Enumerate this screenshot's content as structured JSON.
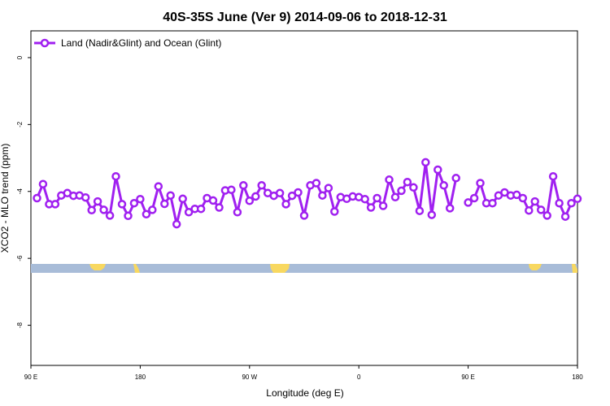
{
  "chart_data": {
    "type": "line",
    "title": "40S-35S June (Ver 9)   2014-09-06 to 2018-12-31",
    "xlabel": "Longitude (deg E)",
    "ylabel": "XCO2 - MLO trend (ppm)",
    "xlim": [
      90,
      540
    ],
    "ylim": [
      -9.2,
      0.8
    ],
    "x_ticks": [
      {
        "value": 90,
        "label": "90 E"
      },
      {
        "value": 180,
        "label": "180"
      },
      {
        "value": 270,
        "label": "90 W"
      },
      {
        "value": 360,
        "label": "0"
      },
      {
        "value": 450,
        "label": "90 E"
      },
      {
        "value": 540,
        "label": "180"
      }
    ],
    "y_ticks": [
      {
        "value": 0,
        "label": "0"
      },
      {
        "value": -2,
        "label": "-2"
      },
      {
        "value": -4,
        "label": "-4"
      },
      {
        "value": -6,
        "label": "-6"
      },
      {
        "value": -8,
        "label": "-8"
      }
    ],
    "legend": {
      "position": "top-left"
    },
    "series": [
      {
        "name": "Land (Nadir&Glint) and Ocean (Glint)",
        "color": "#a020f0",
        "points": [
          [
            95,
            -4.2
          ],
          [
            100,
            -3.78
          ],
          [
            105,
            -4.38
          ],
          [
            110,
            -4.38
          ],
          [
            115,
            -4.12
          ],
          [
            120,
            -4.05
          ],
          [
            125,
            -4.13
          ],
          [
            130,
            -4.12
          ],
          [
            135,
            -4.18
          ],
          [
            140,
            -4.56
          ],
          [
            145,
            -4.3
          ],
          [
            150,
            -4.55
          ],
          [
            155,
            -4.72
          ],
          [
            160,
            -3.55
          ],
          [
            165,
            -4.38
          ],
          [
            170,
            -4.73
          ],
          [
            175,
            -4.35
          ],
          [
            180,
            -4.23
          ],
          [
            185,
            -4.68
          ],
          [
            190,
            -4.55
          ],
          [
            195,
            -3.85
          ],
          [
            200,
            -4.37
          ],
          [
            205,
            -4.12
          ],
          [
            210,
            -4.98
          ],
          [
            215,
            -4.22
          ],
          [
            220,
            -4.62
          ],
          [
            225,
            -4.52
          ],
          [
            230,
            -4.52
          ],
          [
            235,
            -4.2
          ],
          [
            240,
            -4.27
          ],
          [
            245,
            -4.48
          ],
          [
            250,
            -3.97
          ],
          [
            255,
            -3.95
          ],
          [
            260,
            -4.62
          ],
          [
            265,
            -3.82
          ],
          [
            270,
            -4.28
          ],
          [
            275,
            -4.15
          ],
          [
            280,
            -3.82
          ],
          [
            285,
            -4.05
          ],
          [
            290,
            -4.13
          ],
          [
            295,
            -4.05
          ],
          [
            300,
            -4.38
          ],
          [
            305,
            -4.13
          ],
          [
            310,
            -4.03
          ],
          [
            315,
            -4.72
          ],
          [
            320,
            -3.82
          ],
          [
            325,
            -3.75
          ],
          [
            330,
            -4.12
          ],
          [
            335,
            -3.9
          ],
          [
            340,
            -4.6
          ],
          [
            345,
            -4.17
          ],
          [
            350,
            -4.22
          ],
          [
            355,
            -4.15
          ],
          [
            360,
            -4.17
          ],
          [
            365,
            -4.23
          ],
          [
            370,
            -4.48
          ],
          [
            375,
            -4.2
          ],
          [
            380,
            -4.43
          ],
          [
            385,
            -3.65
          ],
          [
            390,
            -4.17
          ],
          [
            395,
            -3.98
          ],
          [
            400,
            -3.72
          ],
          [
            405,
            -3.88
          ],
          [
            410,
            -4.58
          ],
          [
            415,
            -3.13
          ],
          [
            420,
            -4.7
          ],
          [
            425,
            -3.35
          ],
          [
            430,
            -3.82
          ],
          [
            435,
            -4.5
          ],
          [
            440,
            -3.6
          ],
          [
            450,
            -4.33
          ],
          [
            455,
            -4.2
          ],
          [
            460,
            -3.75
          ],
          [
            465,
            -4.35
          ],
          [
            470,
            -4.35
          ],
          [
            475,
            -4.12
          ],
          [
            480,
            -4.03
          ],
          [
            485,
            -4.12
          ],
          [
            490,
            -4.1
          ],
          [
            495,
            -4.2
          ],
          [
            500,
            -4.57
          ],
          [
            505,
            -4.3
          ],
          [
            510,
            -4.55
          ],
          [
            515,
            -4.72
          ],
          [
            520,
            -3.55
          ],
          [
            525,
            -4.35
          ],
          [
            530,
            -4.75
          ],
          [
            535,
            -4.35
          ],
          [
            540,
            -4.22
          ]
        ]
      }
    ]
  }
}
